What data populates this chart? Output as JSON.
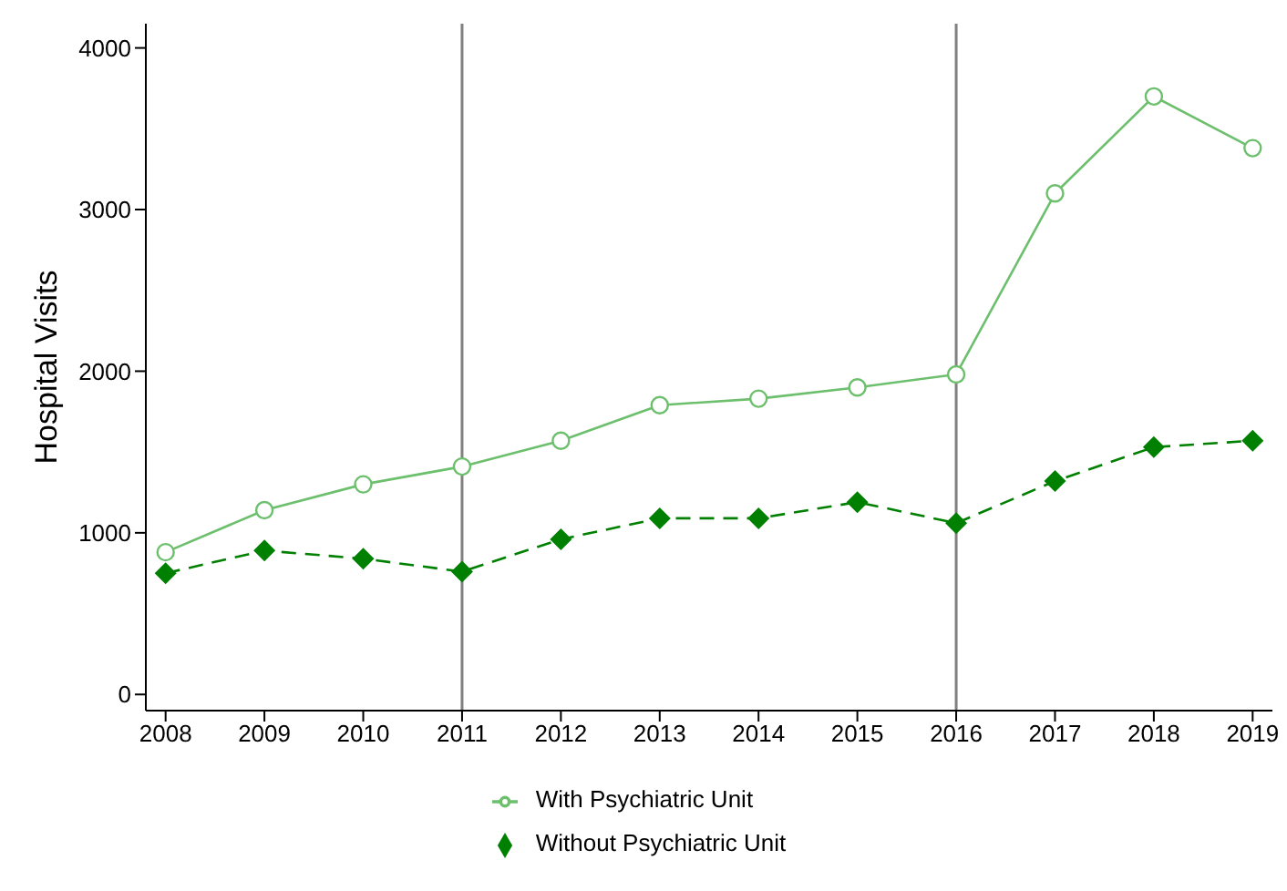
{
  "chart_data": {
    "type": "line",
    "ylabel": "Hospital Visits",
    "x": [
      2008,
      2009,
      2010,
      2011,
      2012,
      2013,
      2014,
      2015,
      2016,
      2017,
      2018,
      2019
    ],
    "series": [
      {
        "name": "With Psychiatric Unit",
        "color": "#6cbf6c",
        "marker": "circle",
        "line_style": "solid",
        "values": [
          880,
          1140,
          1300,
          1410,
          1570,
          1790,
          1830,
          1900,
          1980,
          3100,
          3700,
          3380
        ]
      },
      {
        "name": "Without Psychiatric Unit",
        "color": "#008000",
        "marker": "diamond",
        "line_style": "dashed",
        "values": [
          750,
          890,
          840,
          760,
          960,
          1090,
          1090,
          1190,
          1060,
          1320,
          1530,
          1570
        ]
      }
    ],
    "xlim": [
      2007.8,
      2019.2
    ],
    "xticks": [
      2008,
      2009,
      2010,
      2011,
      2012,
      2013,
      2014,
      2015,
      2016,
      2017,
      2018,
      2019
    ],
    "ylim": [
      -100,
      4150
    ],
    "yticks": [
      0,
      1000,
      2000,
      3000,
      4000
    ],
    "ref_lines": [
      {
        "axis": "x",
        "value": 2011,
        "color": "#808080"
      },
      {
        "axis": "x",
        "value": 2016,
        "color": "#808080"
      }
    ],
    "grid": false,
    "legend": "bottom"
  }
}
